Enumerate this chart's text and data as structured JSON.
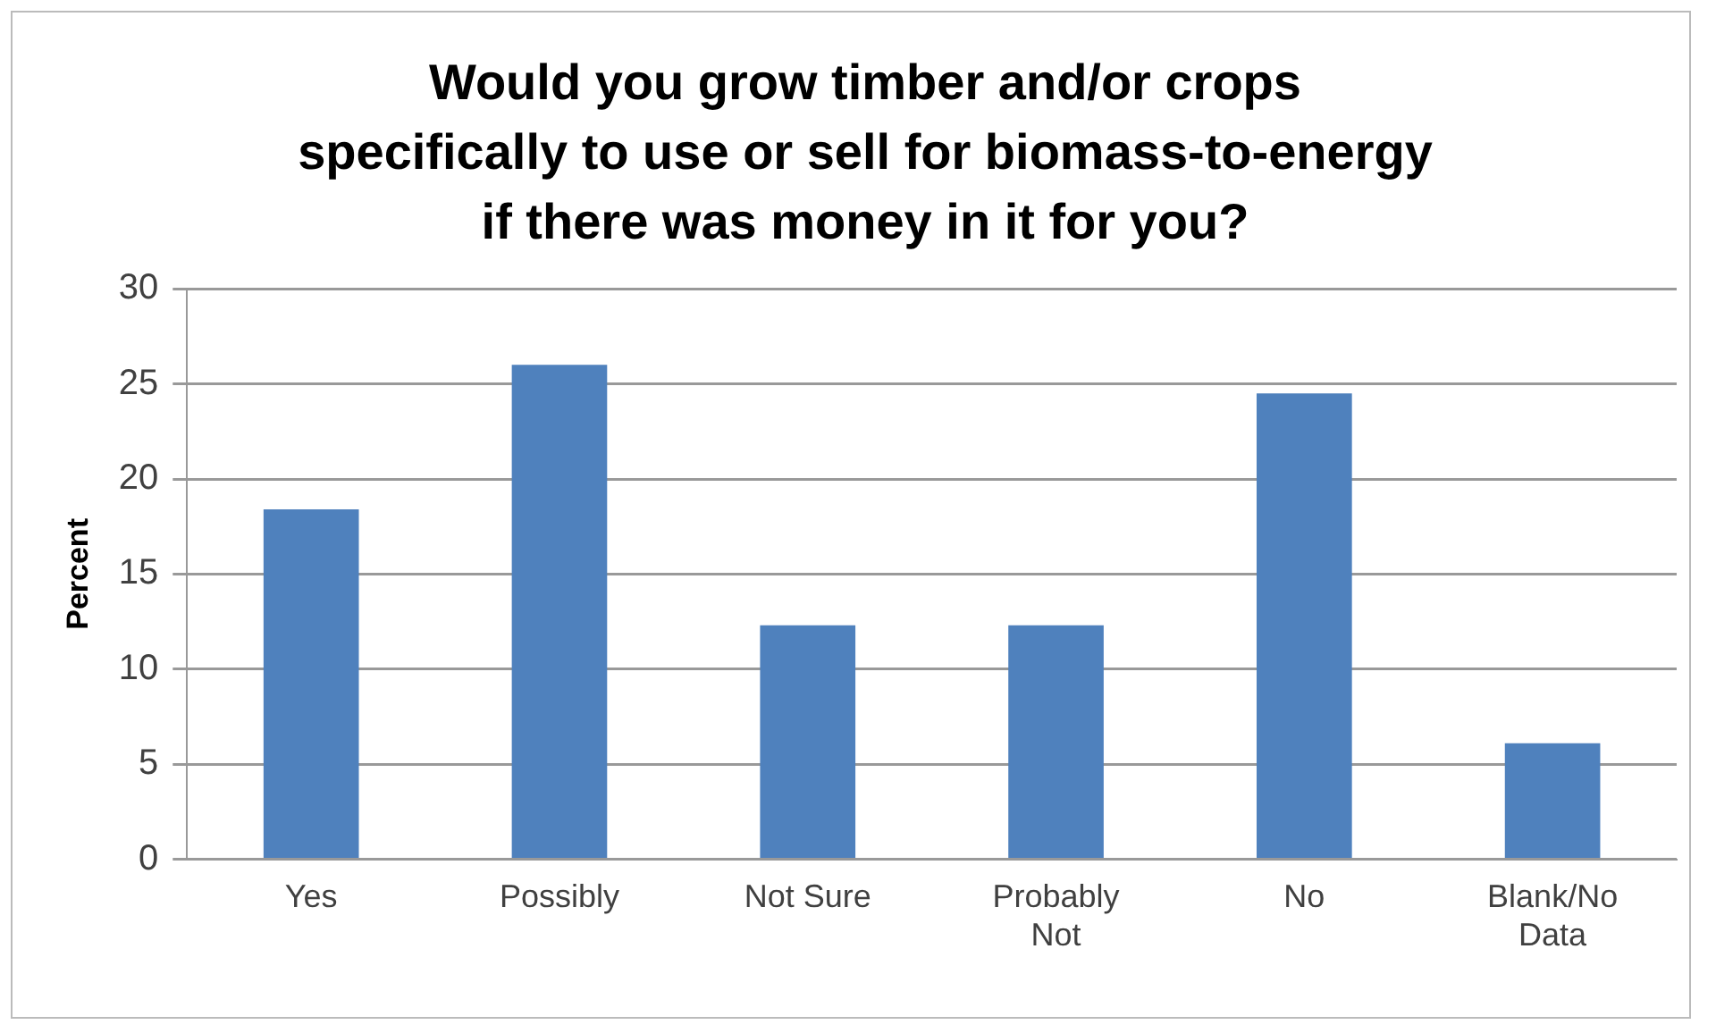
{
  "chart_data": {
    "type": "bar",
    "title": "Would you grow timber and/or crops specifically to use or sell for biomass-to-energy if there was money in it for you?",
    "ylabel": "Percent",
    "categories": [
      "Yes",
      "Possibly",
      "Not Sure",
      "Probably Not",
      "No",
      "Blank/No Data"
    ],
    "values": [
      18.4,
      26.0,
      12.3,
      12.3,
      24.5,
      6.1
    ],
    "color": "#4f81bd",
    "ylim": [
      0,
      30
    ],
    "yticks": [
      0,
      5,
      10,
      15,
      20,
      25,
      30
    ],
    "grid": "y",
    "legend": false
  }
}
